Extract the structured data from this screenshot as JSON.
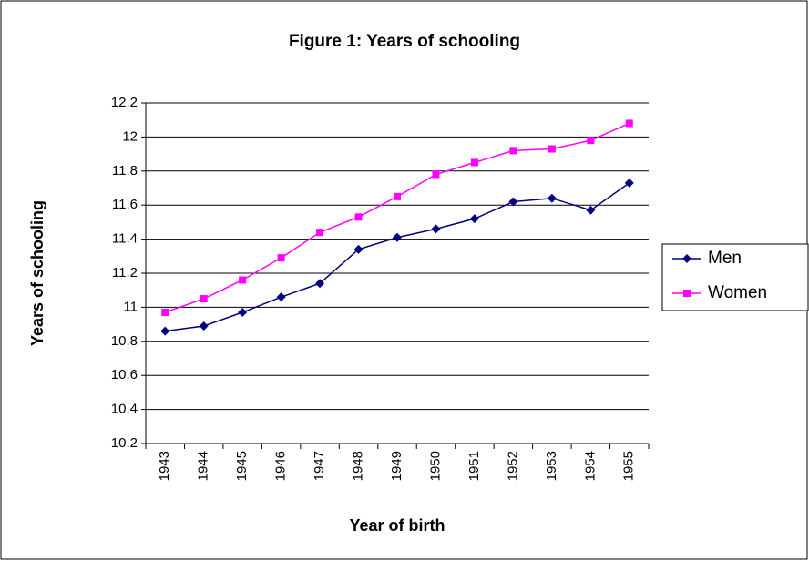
{
  "chart_data": {
    "type": "line",
    "title": "Figure 1: Years of schooling",
    "x_label": "Year of birth",
    "y_label": "Years of schooling",
    "categories": [
      "1943",
      "1944",
      "1945",
      "1946",
      "1947",
      "1948",
      "1949",
      "1950",
      "1951",
      "1952",
      "1953",
      "1954",
      "1955"
    ],
    "series": [
      {
        "name": "Men",
        "color": "#000080",
        "marker": "diamond",
        "values": [
          10.86,
          10.89,
          10.97,
          11.06,
          11.14,
          11.34,
          11.41,
          11.46,
          11.52,
          11.62,
          11.64,
          11.57,
          11.73
        ]
      },
      {
        "name": "Women",
        "color": "#ff00ff",
        "marker": "square",
        "values": [
          10.97,
          11.05,
          11.16,
          11.29,
          11.44,
          11.53,
          11.65,
          11.78,
          11.85,
          11.92,
          11.93,
          11.98,
          12.08
        ]
      }
    ],
    "ylim": [
      10.2,
      12.2
    ],
    "yticks": [
      10.2,
      10.4,
      10.6,
      10.8,
      11,
      11.2,
      11.4,
      11.6,
      11.8,
      12,
      12.2
    ],
    "grid": true,
    "legend": "right"
  }
}
